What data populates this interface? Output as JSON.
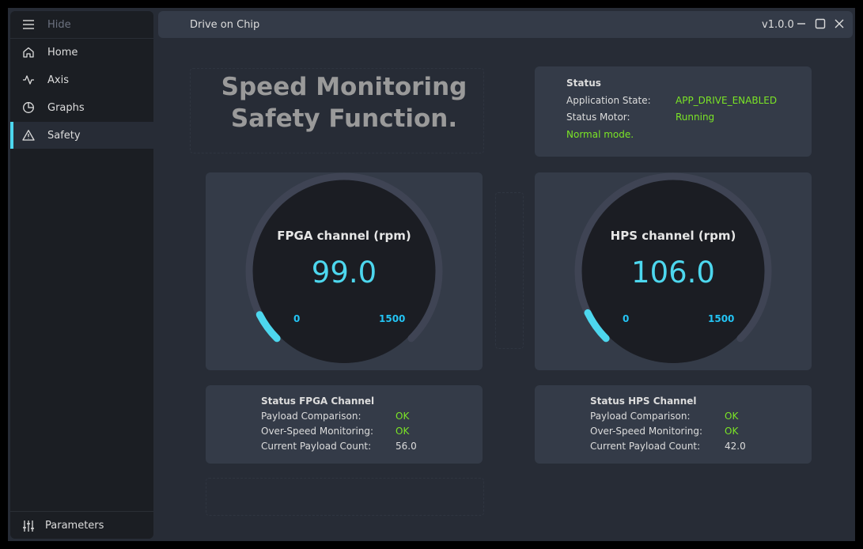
{
  "sidebar": {
    "hide_label": "Hide",
    "items": [
      {
        "label": "Home",
        "icon": "home-icon"
      },
      {
        "label": "Axis",
        "icon": "activity-icon"
      },
      {
        "label": "Graphs",
        "icon": "pie-chart-icon"
      },
      {
        "label": "Safety",
        "icon": "alert-triangle-icon",
        "active": true
      }
    ],
    "parameters_label": "Parameters"
  },
  "titlebar": {
    "title": "Drive on Chip",
    "version": "v1.0.0"
  },
  "page": {
    "title_line1": "Speed Monitoring",
    "title_line2": "Safety Function."
  },
  "status": {
    "heading": "Status",
    "app_state_label": "Application State:",
    "app_state_value": "APP_DRIVE_ENABLED",
    "motor_label": "Status Motor:",
    "motor_value": "Running",
    "mode_text": "Normal mode."
  },
  "gauges": {
    "fpga": {
      "title": "FPGA channel (rpm)",
      "value": "99.0",
      "numeric": 99.0,
      "min": "0",
      "max": "1500",
      "min_num": 0,
      "max_num": 1500
    },
    "hps": {
      "title": "HPS channel (rpm)",
      "value": "106.0",
      "numeric": 106.0,
      "min": "0",
      "max": "1500",
      "min_num": 0,
      "max_num": 1500
    }
  },
  "fpga_status": {
    "heading": "Status FPGA Channel",
    "payload_label": "Payload Comparison:",
    "payload_value": "OK",
    "overspeed_label": "Over-Speed Monitoring:",
    "overspeed_value": "OK",
    "count_label": "Current Payload Count:",
    "count_value": "56.0"
  },
  "hps_status": {
    "heading": "Status HPS Channel",
    "payload_label": "Payload Comparison:",
    "payload_value": "OK",
    "overspeed_label": "Over-Speed Monitoring:",
    "overspeed_value": "OK",
    "count_label": "Current Payload Count:",
    "count_value": "42.0"
  },
  "colors": {
    "accent": "#4dd7ee",
    "label_blue": "#23c4f4",
    "ok_green": "#7be526",
    "panel": "#343b48",
    "gauge_face": "#1b1d23",
    "gauge_track": "#3f4454"
  }
}
